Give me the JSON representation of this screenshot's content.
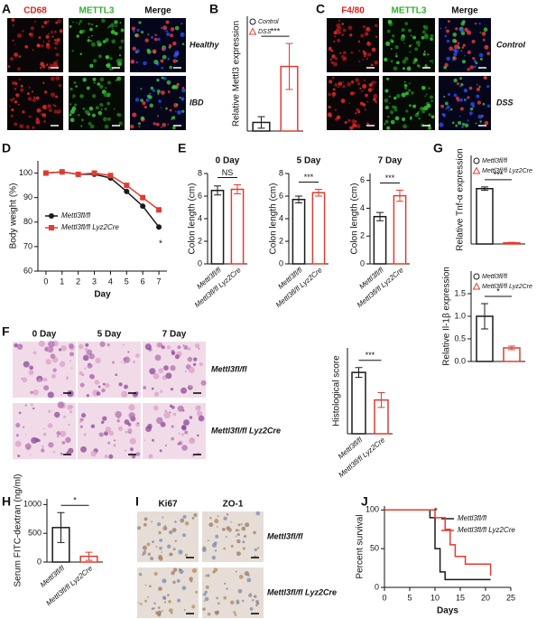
{
  "figure": {
    "A": {
      "label": "A",
      "headers": [
        "CD68",
        "METTL3",
        "Merge"
      ],
      "header_colors": [
        "#e02020",
        "#30b030",
        "#111111"
      ],
      "rows": [
        "Healthy",
        "IBD"
      ]
    },
    "C": {
      "label": "C",
      "headers": [
        "F4/80",
        "METTL3",
        "Merge"
      ],
      "header_colors": [
        "#e02020",
        "#30b030",
        "#111111"
      ],
      "rows": [
        "Control",
        "DSS"
      ]
    },
    "F": {
      "label": "F",
      "headers": [
        "0 Day",
        "5 Day",
        "7 Day"
      ],
      "rows": [
        "Mettl3fl/fl",
        "Mettl3fl/fl Lyz2Cre"
      ]
    },
    "I": {
      "label": "I",
      "headers": [
        "Ki67",
        "ZO-1"
      ],
      "rows": [
        "Mettl3fl/fl",
        "Mettl3fl/fl Lyz2Cre"
      ]
    }
  },
  "chart_data": [
    {
      "panel": "B",
      "type": "bar",
      "ylabel": "Relative Mettl3 expression",
      "categories": [
        "Control",
        "DSS"
      ],
      "values": [
        1.2,
        9
      ],
      "errors": [
        0.8,
        3.2
      ],
      "colors": [
        "#1a1a1a",
        "#e03c31"
      ],
      "ylim": [
        0,
        16
      ],
      "annotation": "***",
      "legend": "top"
    },
    {
      "panel": "D",
      "type": "line",
      "xlabel": "Day",
      "ylabel": "Body weight (%)",
      "x": [
        0,
        1,
        2,
        3,
        4,
        5,
        6,
        7
      ],
      "xlim": [
        -0.5,
        7.5
      ],
      "xticks": [
        0,
        1,
        2,
        3,
        4,
        5,
        6,
        7
      ],
      "ylim": [
        60,
        105
      ],
      "yticks": [
        60,
        70,
        80,
        90,
        100
      ],
      "series": [
        {
          "name": "Mettl3fl/fl",
          "color": "#1a1a1a",
          "marker": "circle",
          "values": [
            100,
            100.5,
            99.5,
            99.5,
            98,
            92.5,
            86.5,
            78
          ]
        },
        {
          "name": "Mettl3fl/fl Lyz2Cre",
          "color": "#e03c31",
          "marker": "square",
          "values": [
            100,
            100.5,
            99.5,
            100,
            99,
            95,
            90,
            85
          ]
        }
      ],
      "annotation": "*",
      "legend": "left"
    },
    {
      "panel": "E",
      "type": "bar",
      "title": "0 Day",
      "ylabel": "Colon length (cm)",
      "categories": [
        "Mettl3fl/fl",
        "Mettl3fl/fl Lyz2Cre"
      ],
      "values": [
        6.5,
        6.6
      ],
      "errors": [
        0.4,
        0.4
      ],
      "colors": [
        "#1a1a1a",
        "#e03c31"
      ],
      "ylim": [
        0,
        8
      ],
      "yticks": [
        0,
        2,
        4,
        6,
        8
      ],
      "annotation": "NS"
    },
    {
      "type": "bar",
      "title": "5 Day",
      "ylabel": "Colon length (cm)",
      "categories": [
        "Mettl3fl/fl",
        "Mettl3fl/fl Lyz2Cre"
      ],
      "values": [
        5.7,
        6.3
      ],
      "errors": [
        0.3,
        0.3
      ],
      "colors": [
        "#1a1a1a",
        "#e03c31"
      ],
      "ylim": [
        0,
        8
      ],
      "yticks": [
        0,
        2,
        4,
        6,
        8
      ],
      "annotation": "***"
    },
    {
      "type": "bar",
      "title": "7 Day",
      "ylabel": "Colon length (cm)",
      "categories": [
        "Mettl3fl/fl",
        "Mettl3fl/fl Lyz2Cre"
      ],
      "values": [
        3.4,
        4.9
      ],
      "errors": [
        0.3,
        0.4
      ],
      "colors": [
        "#1a1a1a",
        "#e03c31"
      ],
      "ylim": [
        0,
        6.5
      ],
      "yticks": [
        0,
        2,
        4,
        6
      ],
      "annotation": "***"
    },
    {
      "panel": "G",
      "type": "bar",
      "ylabel": "Relative Tnf-α expression",
      "categories": [
        "Mettl3fl/fl",
        "Mettl3fl/fl Lyz2Cre"
      ],
      "values": [
        1.0,
        0.02
      ],
      "errors": [
        0.03,
        0.01
      ],
      "colors": [
        "#1a1a1a",
        "#e03c31"
      ],
      "ylim": [
        0,
        1.6
      ],
      "annotation": "***",
      "legend": "top"
    },
    {
      "type": "bar",
      "ylabel": "Relative Il-1β expression",
      "categories": [
        "Mettl3fl/fl",
        "Mettl3fl/fl Lyz2Cre"
      ],
      "values": [
        1.0,
        0.3
      ],
      "errors": [
        0.28,
        0.04
      ],
      "colors": [
        "#1a1a1a",
        "#e03c31"
      ],
      "ylim": [
        0,
        2.0
      ],
      "yticks": [
        {
          "value": 0,
          "label": "0.0"
        },
        {
          "value": 0.5,
          "label": "0.5"
        },
        {
          "value": 1,
          "label": "1.0"
        },
        {
          "value": 1.5,
          "label": "1.5"
        }
      ],
      "annotation": "*",
      "legend": "top"
    },
    {
      "type": "bar",
      "ylabel": "Histological score",
      "categories": [
        "Mettl3fl/fl",
        "Mettl3fl/fl Lyz2Cre"
      ],
      "values": [
        10,
        5.5
      ],
      "errors": [
        0.8,
        1.2
      ],
      "colors": [
        "#1a1a1a",
        "#e03c31"
      ],
      "ylim": [
        0,
        14
      ],
      "annotation": "***"
    },
    {
      "panel": "H",
      "type": "bar",
      "ylabel": "Serum FITC-dextran (ng/ml)",
      "categories": [
        "Mettl3fl/fl",
        "Mettl3fl/fl Lyz2Cre"
      ],
      "values": [
        600,
        100
      ],
      "errors": [
        260,
        70
      ],
      "colors": [
        "#1a1a1a",
        "#e03c31"
      ],
      "ylim": [
        0,
        1100
      ],
      "yticks": [
        0,
        500,
        1000
      ],
      "annotation": "*"
    },
    {
      "panel": "J",
      "type": "line",
      "step": true,
      "xlabel": "Days",
      "ylabel": "Percent survival",
      "xlim": [
        0,
        25
      ],
      "xticks": [
        0,
        5,
        10,
        15,
        20,
        25
      ],
      "ylim": [
        0,
        105
      ],
      "yticks": [
        0,
        50,
        100
      ],
      "series": [
        {
          "name": "Mettl3fl/fl",
          "color": "#1a1a1a",
          "x": [
            0,
            9,
            10,
            11,
            12,
            21
          ],
          "values": [
            100,
            90,
            50,
            20,
            10,
            10
          ]
        },
        {
          "name": "Mettl3fl/fl Lyz2Cre",
          "color": "#e03c31",
          "x": [
            0,
            10,
            12,
            13,
            14,
            16,
            21
          ],
          "values": [
            100,
            90,
            75,
            55,
            40,
            30,
            15
          ]
        }
      ],
      "annotation": "*",
      "legend": "right"
    }
  ]
}
